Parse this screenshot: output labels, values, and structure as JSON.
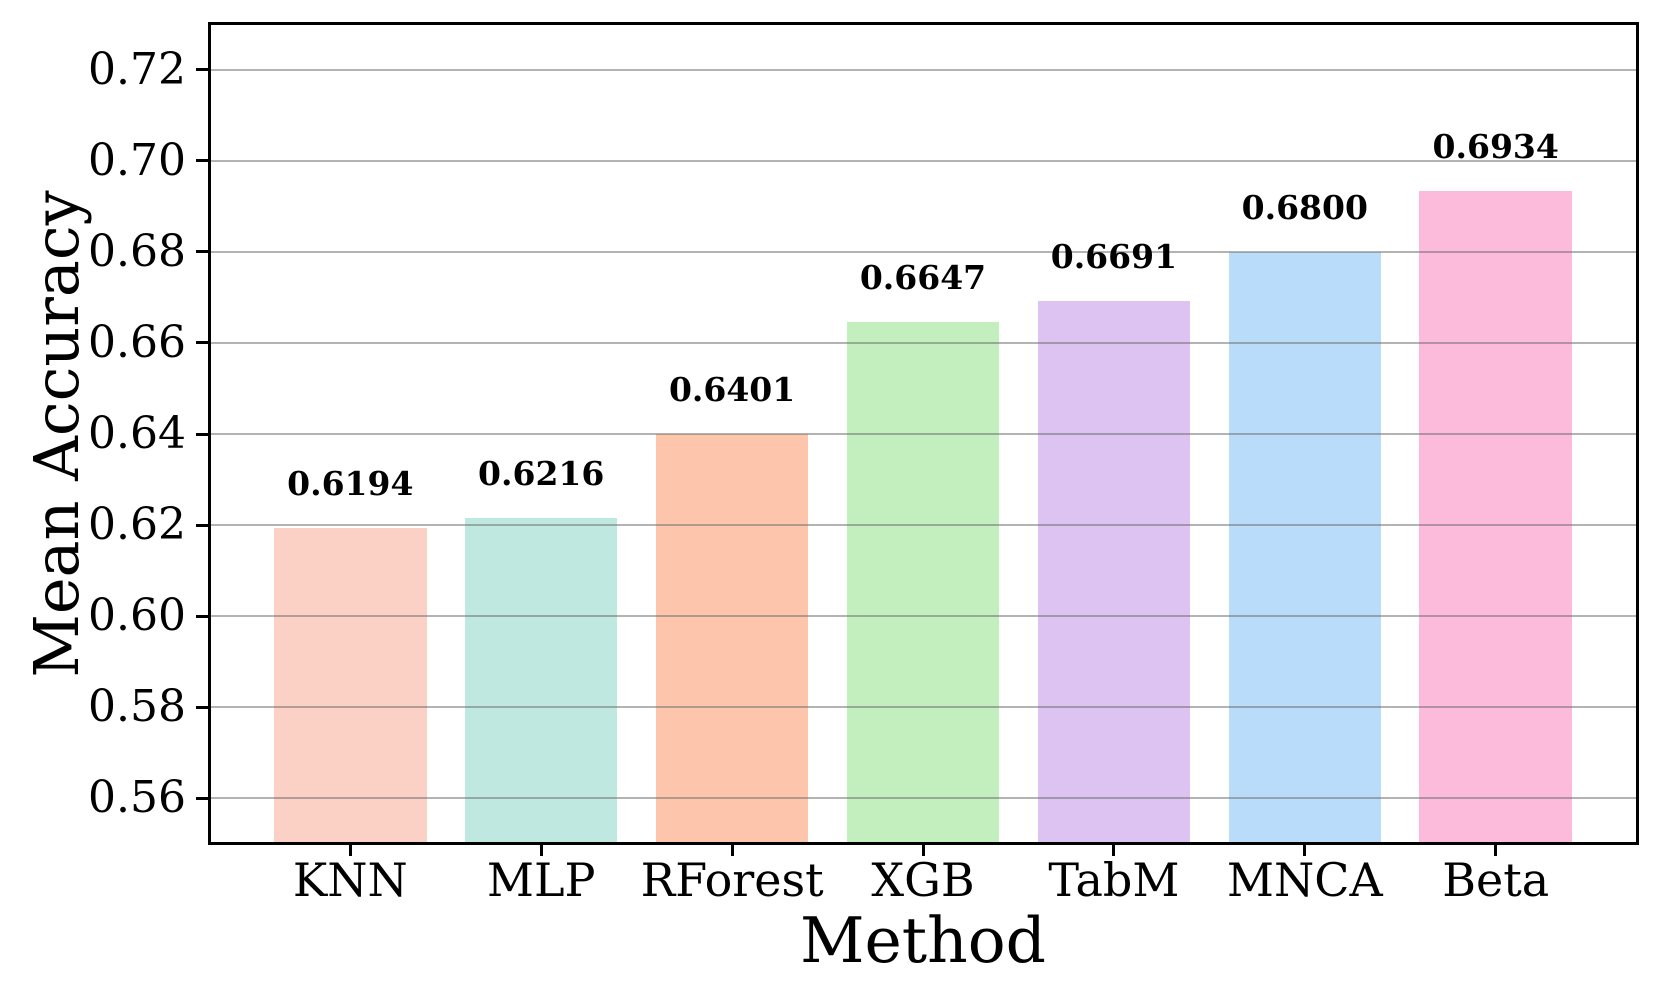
{
  "chart_data": {
    "type": "bar",
    "categories": [
      "KNN",
      "MLP",
      "RForest",
      "XGB",
      "TabM",
      "MNCA",
      "Beta"
    ],
    "values": [
      0.6194,
      0.6216,
      0.6401,
      0.6647,
      0.6691,
      0.68,
      0.6934
    ],
    "value_labels": [
      "0.6194",
      "0.6216",
      "0.6401",
      "0.6647",
      "0.6691",
      "0.6800",
      "0.6934"
    ],
    "bar_colors": [
      "#fbd0c5",
      "#bee8e0",
      "#fcc5ac",
      "#c2efbd",
      "#dcc3f1",
      "#b9dcfb",
      "#fdbbdc"
    ],
    "title": "",
    "xlabel": "Method",
    "ylabel": "Mean Accuracy",
    "ylim": [
      0.55,
      0.73
    ],
    "yticks": [
      0.56,
      0.58,
      0.6,
      0.62,
      0.64,
      0.66,
      0.68,
      0.7,
      0.72
    ],
    "ytick_labels": [
      "0.56",
      "0.58",
      "0.60",
      "0.62",
      "0.64",
      "0.66",
      "0.68",
      "0.70",
      "0.72"
    ],
    "xlim": [
      -0.74,
      6.74
    ],
    "bar_width": 0.8,
    "grid": "horizontal-only",
    "gridline_color": "#b0b0b0",
    "axis_color": "#000000",
    "background_color": "#ffffff",
    "legend": "none"
  }
}
